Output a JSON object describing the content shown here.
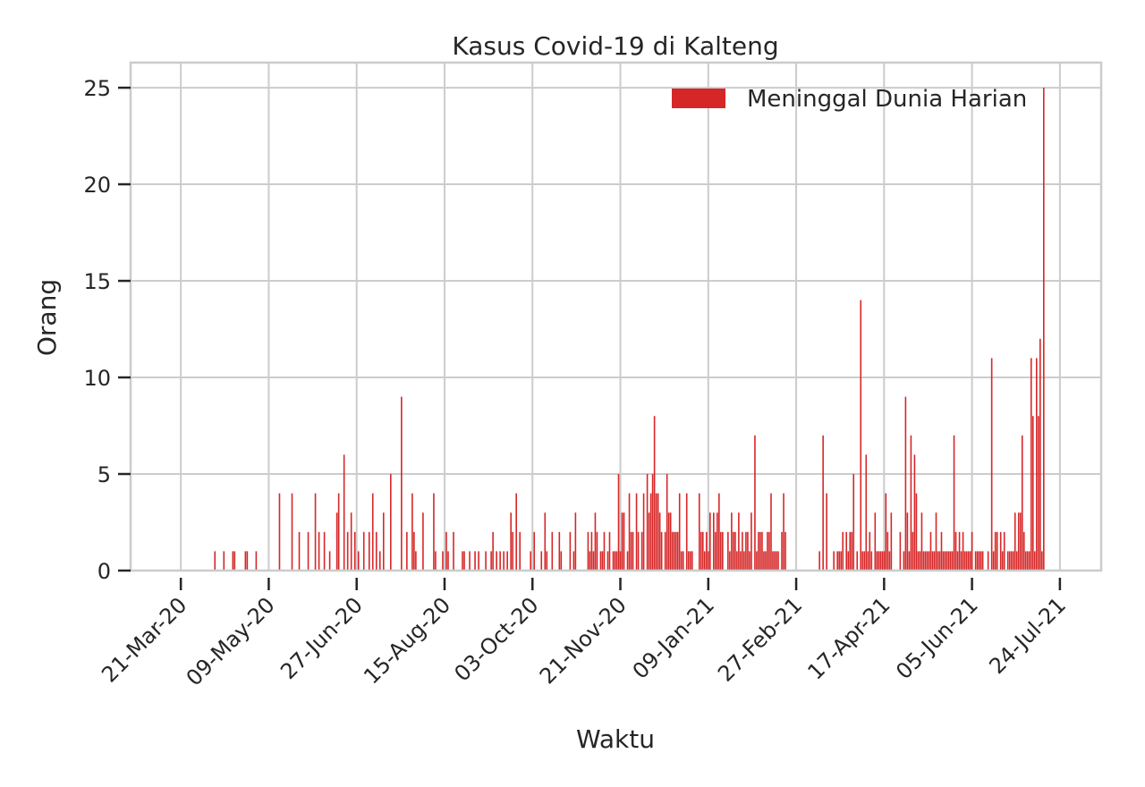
{
  "chart_data": {
    "type": "bar",
    "title": "Kasus Covid-19 di Kalteng",
    "xlabel": "Waktu",
    "ylabel": "Orang",
    "ylim": [
      0,
      26.3
    ],
    "yticks": [
      0,
      5,
      10,
      15,
      20,
      25
    ],
    "xlim": [
      "2020-02-22",
      "2021-08-16"
    ],
    "xticks": [
      {
        "date": "2020-03-21",
        "label": "21-Mar-20"
      },
      {
        "date": "2020-05-09",
        "label": "09-May-20"
      },
      {
        "date": "2020-06-27",
        "label": "27-Jun-20"
      },
      {
        "date": "2020-08-15",
        "label": "15-Aug-20"
      },
      {
        "date": "2020-10-03",
        "label": "03-Oct-20"
      },
      {
        "date": "2020-11-21",
        "label": "21-Nov-20"
      },
      {
        "date": "2021-01-09",
        "label": "09-Jan-21"
      },
      {
        "date": "2021-02-27",
        "label": "27-Feb-21"
      },
      {
        "date": "2021-04-17",
        "label": "17-Apr-21"
      },
      {
        "date": "2021-06-05",
        "label": "05-Jun-21"
      },
      {
        "date": "2021-07-24",
        "label": "24-Jul-21"
      }
    ],
    "grid": true,
    "legend": "top-right",
    "series": [
      {
        "name": "Meninggal Dunia Harian",
        "color": "#d62728",
        "points": [
          [
            "2020-04-09",
            1
          ],
          [
            "2020-04-14",
            1
          ],
          [
            "2020-04-19",
            1
          ],
          [
            "2020-04-20",
            1
          ],
          [
            "2020-04-26",
            1
          ],
          [
            "2020-04-27",
            1
          ],
          [
            "2020-05-02",
            1
          ],
          [
            "2020-05-15",
            4
          ],
          [
            "2020-05-22",
            4
          ],
          [
            "2020-05-26",
            2
          ],
          [
            "2020-05-31",
            2
          ],
          [
            "2020-06-04",
            4
          ],
          [
            "2020-06-06",
            2
          ],
          [
            "2020-06-09",
            2
          ],
          [
            "2020-06-12",
            1
          ],
          [
            "2020-06-16",
            3
          ],
          [
            "2020-06-17",
            4
          ],
          [
            "2020-06-20",
            6
          ],
          [
            "2020-06-22",
            2
          ],
          [
            "2020-06-24",
            3
          ],
          [
            "2020-06-26",
            2
          ],
          [
            "2020-06-28",
            1
          ],
          [
            "2020-07-01",
            2
          ],
          [
            "2020-07-04",
            2
          ],
          [
            "2020-07-06",
            4
          ],
          [
            "2020-07-08",
            2
          ],
          [
            "2020-07-10",
            1
          ],
          [
            "2020-07-12",
            3
          ],
          [
            "2020-07-16",
            5
          ],
          [
            "2020-07-22",
            9
          ],
          [
            "2020-07-25",
            2
          ],
          [
            "2020-07-28",
            4
          ],
          [
            "2020-07-29",
            2
          ],
          [
            "2020-07-30",
            1
          ],
          [
            "2020-08-03",
            3
          ],
          [
            "2020-08-09",
            4
          ],
          [
            "2020-08-10",
            1
          ],
          [
            "2020-08-14",
            1
          ],
          [
            "2020-08-16",
            2
          ],
          [
            "2020-08-17",
            1
          ],
          [
            "2020-08-20",
            2
          ],
          [
            "2020-08-25",
            1
          ],
          [
            "2020-08-26",
            1
          ],
          [
            "2020-08-29",
            1
          ],
          [
            "2020-09-01",
            1
          ],
          [
            "2020-09-03",
            1
          ],
          [
            "2020-09-07",
            1
          ],
          [
            "2020-09-10",
            1
          ],
          [
            "2020-09-11",
            2
          ],
          [
            "2020-09-13",
            1
          ],
          [
            "2020-09-15",
            1
          ],
          [
            "2020-09-17",
            1
          ],
          [
            "2020-09-19",
            1
          ],
          [
            "2020-09-21",
            3
          ],
          [
            "2020-09-22",
            2
          ],
          [
            "2020-09-24",
            4
          ],
          [
            "2020-09-26",
            2
          ],
          [
            "2020-10-02",
            1
          ],
          [
            "2020-10-04",
            2
          ],
          [
            "2020-10-08",
            1
          ],
          [
            "2020-10-10",
            3
          ],
          [
            "2020-10-11",
            1
          ],
          [
            "2020-10-14",
            2
          ],
          [
            "2020-10-18",
            2
          ],
          [
            "2020-10-19",
            1
          ],
          [
            "2020-10-24",
            2
          ],
          [
            "2020-10-26",
            1
          ],
          [
            "2020-10-27",
            3
          ],
          [
            "2020-11-03",
            2
          ],
          [
            "2020-11-04",
            1
          ],
          [
            "2020-11-05",
            2
          ],
          [
            "2020-11-06",
            1
          ],
          [
            "2020-11-07",
            3
          ],
          [
            "2020-11-08",
            2
          ],
          [
            "2020-11-10",
            1
          ],
          [
            "2020-11-11",
            1
          ],
          [
            "2020-11-12",
            2
          ],
          [
            "2020-11-14",
            1
          ],
          [
            "2020-11-15",
            2
          ],
          [
            "2020-11-17",
            1
          ],
          [
            "2020-11-18",
            1
          ],
          [
            "2020-11-19",
            1
          ],
          [
            "2020-11-20",
            5
          ],
          [
            "2020-11-21",
            1
          ],
          [
            "2020-11-22",
            3
          ],
          [
            "2020-11-23",
            3
          ],
          [
            "2020-11-25",
            1
          ],
          [
            "2020-11-26",
            4
          ],
          [
            "2020-11-27",
            2
          ],
          [
            "2020-11-28",
            2
          ],
          [
            "2020-11-30",
            4
          ],
          [
            "2020-12-01",
            2
          ],
          [
            "2020-12-03",
            2
          ],
          [
            "2020-12-04",
            4
          ],
          [
            "2020-12-06",
            5
          ],
          [
            "2020-12-07",
            3
          ],
          [
            "2020-12-08",
            4
          ],
          [
            "2020-12-09",
            5
          ],
          [
            "2020-12-10",
            8
          ],
          [
            "2020-12-11",
            4
          ],
          [
            "2020-12-12",
            4
          ],
          [
            "2020-12-13",
            3
          ],
          [
            "2020-12-14",
            2
          ],
          [
            "2020-12-16",
            2
          ],
          [
            "2020-12-17",
            5
          ],
          [
            "2020-12-18",
            3
          ],
          [
            "2020-12-19",
            3
          ],
          [
            "2020-12-20",
            2
          ],
          [
            "2020-12-21",
            2
          ],
          [
            "2020-12-22",
            2
          ],
          [
            "2020-12-23",
            2
          ],
          [
            "2020-12-24",
            4
          ],
          [
            "2020-12-25",
            1
          ],
          [
            "2020-12-26",
            1
          ],
          [
            "2020-12-28",
            4
          ],
          [
            "2020-12-29",
            1
          ],
          [
            "2020-12-30",
            1
          ],
          [
            "2020-12-31",
            1
          ],
          [
            "2021-01-04",
            4
          ],
          [
            "2021-01-05",
            2
          ],
          [
            "2021-01-06",
            2
          ],
          [
            "2021-01-07",
            1
          ],
          [
            "2021-01-08",
            2
          ],
          [
            "2021-01-09",
            1
          ],
          [
            "2021-01-10",
            3
          ],
          [
            "2021-01-12",
            3
          ],
          [
            "2021-01-13",
            2
          ],
          [
            "2021-01-14",
            3
          ],
          [
            "2021-01-15",
            4
          ],
          [
            "2021-01-16",
            2
          ],
          [
            "2021-01-17",
            2
          ],
          [
            "2021-01-20",
            2
          ],
          [
            "2021-01-21",
            1
          ],
          [
            "2021-01-22",
            3
          ],
          [
            "2021-01-23",
            2
          ],
          [
            "2021-01-24",
            2
          ],
          [
            "2021-01-25",
            1
          ],
          [
            "2021-01-26",
            3
          ],
          [
            "2021-01-27",
            1
          ],
          [
            "2021-01-28",
            2
          ],
          [
            "2021-01-29",
            1
          ],
          [
            "2021-01-30",
            2
          ],
          [
            "2021-01-31",
            2
          ],
          [
            "2021-02-01",
            1
          ],
          [
            "2021-02-02",
            3
          ],
          [
            "2021-02-04",
            7
          ],
          [
            "2021-02-05",
            1
          ],
          [
            "2021-02-06",
            2
          ],
          [
            "2021-02-07",
            2
          ],
          [
            "2021-02-08",
            2
          ],
          [
            "2021-02-09",
            1
          ],
          [
            "2021-02-10",
            1
          ],
          [
            "2021-02-11",
            2
          ],
          [
            "2021-02-12",
            2
          ],
          [
            "2021-02-13",
            4
          ],
          [
            "2021-02-14",
            1
          ],
          [
            "2021-02-15",
            1
          ],
          [
            "2021-02-16",
            1
          ],
          [
            "2021-02-17",
            1
          ],
          [
            "2021-02-19",
            2
          ],
          [
            "2021-02-20",
            4
          ],
          [
            "2021-02-21",
            2
          ],
          [
            "2021-03-12",
            1
          ],
          [
            "2021-03-14",
            7
          ],
          [
            "2021-03-16",
            4
          ],
          [
            "2021-03-20",
            1
          ],
          [
            "2021-03-22",
            1
          ],
          [
            "2021-03-23",
            1
          ],
          [
            "2021-03-24",
            1
          ],
          [
            "2021-03-25",
            2
          ],
          [
            "2021-03-27",
            2
          ],
          [
            "2021-03-28",
            1
          ],
          [
            "2021-03-29",
            2
          ],
          [
            "2021-03-30",
            2
          ],
          [
            "2021-03-31",
            5
          ],
          [
            "2021-04-02",
            1
          ],
          [
            "2021-04-04",
            14
          ],
          [
            "2021-04-05",
            1
          ],
          [
            "2021-04-06",
            1
          ],
          [
            "2021-04-07",
            6
          ],
          [
            "2021-04-08",
            1
          ],
          [
            "2021-04-09",
            2
          ],
          [
            "2021-04-10",
            1
          ],
          [
            "2021-04-12",
            3
          ],
          [
            "2021-04-13",
            1
          ],
          [
            "2021-04-14",
            1
          ],
          [
            "2021-04-15",
            1
          ],
          [
            "2021-04-16",
            1
          ],
          [
            "2021-04-17",
            1
          ],
          [
            "2021-04-18",
            4
          ],
          [
            "2021-04-19",
            2
          ],
          [
            "2021-04-20",
            1
          ],
          [
            "2021-04-21",
            3
          ],
          [
            "2021-04-26",
            2
          ],
          [
            "2021-04-28",
            1
          ],
          [
            "2021-04-29",
            9
          ],
          [
            "2021-04-30",
            3
          ],
          [
            "2021-05-01",
            1
          ],
          [
            "2021-05-02",
            7
          ],
          [
            "2021-05-03",
            2
          ],
          [
            "2021-05-04",
            6
          ],
          [
            "2021-05-05",
            4
          ],
          [
            "2021-05-06",
            1
          ],
          [
            "2021-05-07",
            1
          ],
          [
            "2021-05-08",
            3
          ],
          [
            "2021-05-09",
            1
          ],
          [
            "2021-05-10",
            1
          ],
          [
            "2021-05-11",
            1
          ],
          [
            "2021-05-12",
            1
          ],
          [
            "2021-05-13",
            2
          ],
          [
            "2021-05-14",
            1
          ],
          [
            "2021-05-15",
            1
          ],
          [
            "2021-05-16",
            3
          ],
          [
            "2021-05-17",
            1
          ],
          [
            "2021-05-18",
            1
          ],
          [
            "2021-05-19",
            2
          ],
          [
            "2021-05-20",
            1
          ],
          [
            "2021-05-21",
            1
          ],
          [
            "2021-05-22",
            1
          ],
          [
            "2021-05-23",
            1
          ],
          [
            "2021-05-24",
            1
          ],
          [
            "2021-05-25",
            1
          ],
          [
            "2021-05-26",
            7
          ],
          [
            "2021-05-27",
            2
          ],
          [
            "2021-05-28",
            1
          ],
          [
            "2021-05-29",
            2
          ],
          [
            "2021-05-30",
            1
          ],
          [
            "2021-05-31",
            2
          ],
          [
            "2021-06-01",
            1
          ],
          [
            "2021-06-02",
            1
          ],
          [
            "2021-06-03",
            1
          ],
          [
            "2021-06-04",
            1
          ],
          [
            "2021-06-05",
            2
          ],
          [
            "2021-06-07",
            1
          ],
          [
            "2021-06-08",
            1
          ],
          [
            "2021-06-09",
            1
          ],
          [
            "2021-06-10",
            1
          ],
          [
            "2021-06-11",
            1
          ],
          [
            "2021-06-14",
            1
          ],
          [
            "2021-06-16",
            11
          ],
          [
            "2021-06-17",
            1
          ],
          [
            "2021-06-18",
            2
          ],
          [
            "2021-06-19",
            2
          ],
          [
            "2021-06-21",
            2
          ],
          [
            "2021-06-22",
            1
          ],
          [
            "2021-06-23",
            2
          ],
          [
            "2021-06-25",
            1
          ],
          [
            "2021-06-26",
            1
          ],
          [
            "2021-06-27",
            1
          ],
          [
            "2021-06-28",
            1
          ],
          [
            "2021-06-29",
            3
          ],
          [
            "2021-06-30",
            1
          ],
          [
            "2021-07-01",
            3
          ],
          [
            "2021-07-02",
            3
          ],
          [
            "2021-07-03",
            7
          ],
          [
            "2021-07-04",
            2
          ],
          [
            "2021-07-05",
            1
          ],
          [
            "2021-07-06",
            1
          ],
          [
            "2021-07-07",
            1
          ],
          [
            "2021-07-08",
            11
          ],
          [
            "2021-07-09",
            8
          ],
          [
            "2021-07-10",
            1
          ],
          [
            "2021-07-11",
            11
          ],
          [
            "2021-07-12",
            8
          ],
          [
            "2021-07-13",
            12
          ],
          [
            "2021-07-14",
            1
          ],
          [
            "2021-07-15",
            25
          ]
        ]
      }
    ]
  }
}
